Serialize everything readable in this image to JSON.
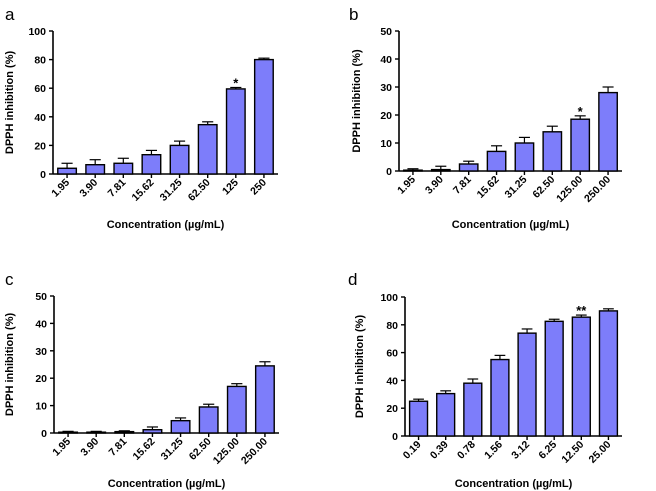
{
  "chart_data": [
    {
      "panel": "a",
      "type": "bar",
      "categories": [
        "1.95",
        "3.90",
        "7.81",
        "15.62",
        "31.25",
        "62.50",
        "125",
        "250"
      ],
      "values": [
        4,
        6.5,
        7.5,
        13.5,
        20,
        34.5,
        59.5,
        80
      ],
      "errors": [
        3.5,
        3.5,
        3.5,
        3,
        3,
        2,
        1,
        1
      ],
      "annotations": [
        {
          "index": 6,
          "text": "*"
        }
      ],
      "xlabel": "Concentration (µg/mL)",
      "ylabel": "DPPH inhibition (%)",
      "ylim": [
        0,
        100
      ],
      "yticks": [
        0,
        20,
        40,
        60,
        80,
        100
      ],
      "bar_color": "#7d7dfa"
    },
    {
      "panel": "b",
      "type": "bar",
      "categories": [
        "1.95",
        "3.90",
        "7.81",
        "15.62",
        "31.25",
        "62.50",
        "125.00",
        "250.00"
      ],
      "values": [
        0.3,
        0.5,
        2.5,
        7,
        10,
        14,
        18.5,
        28
      ],
      "errors": [
        0.5,
        1.2,
        1,
        2,
        2,
        2,
        1.2,
        2
      ],
      "annotations": [
        {
          "index": 6,
          "text": "*"
        }
      ],
      "xlabel": "Concentration (µg/mL)",
      "ylabel": "DPPH inhibition (%)",
      "ylim": [
        0,
        50
      ],
      "yticks": [
        0,
        10,
        20,
        30,
        40,
        50
      ],
      "bar_color": "#7d7dfa"
    },
    {
      "panel": "c",
      "type": "bar",
      "categories": [
        "1.95",
        "3.90",
        "7.81",
        "15.62",
        "31.25",
        "62.50",
        "125.00",
        "250.00"
      ],
      "values": [
        0.3,
        0.3,
        0.5,
        1.2,
        4.5,
        9.5,
        17,
        24.5
      ],
      "errors": [
        0.3,
        0.3,
        0.3,
        1,
        1,
        1,
        1,
        1.5
      ],
      "annotations": [],
      "xlabel": "Concentration (µg/mL)",
      "ylabel": "DPPH inhibition (%)",
      "ylim": [
        0,
        50
      ],
      "yticks": [
        0,
        10,
        20,
        30,
        40,
        50
      ],
      "bar_color": "#7d7dfa"
    },
    {
      "panel": "d",
      "type": "bar",
      "categories": [
        "0.19",
        "0.39",
        "0.78",
        "1.56",
        "3.12",
        "6.25",
        "12.50",
        "25.00"
      ],
      "values": [
        25,
        30.5,
        38,
        55,
        74,
        82.5,
        85.5,
        90
      ],
      "errors": [
        1.5,
        2,
        3,
        3,
        3,
        1.5,
        1.5,
        1.5
      ],
      "annotations": [
        {
          "index": 6,
          "text": "**"
        }
      ],
      "xlabel": "Concentration (µg/mL)",
      "ylabel": "DPPH inhibition (%)",
      "ylim": [
        0,
        100
      ],
      "yticks": [
        0,
        20,
        40,
        60,
        80,
        100
      ],
      "bar_color": "#7d7dfa"
    }
  ]
}
